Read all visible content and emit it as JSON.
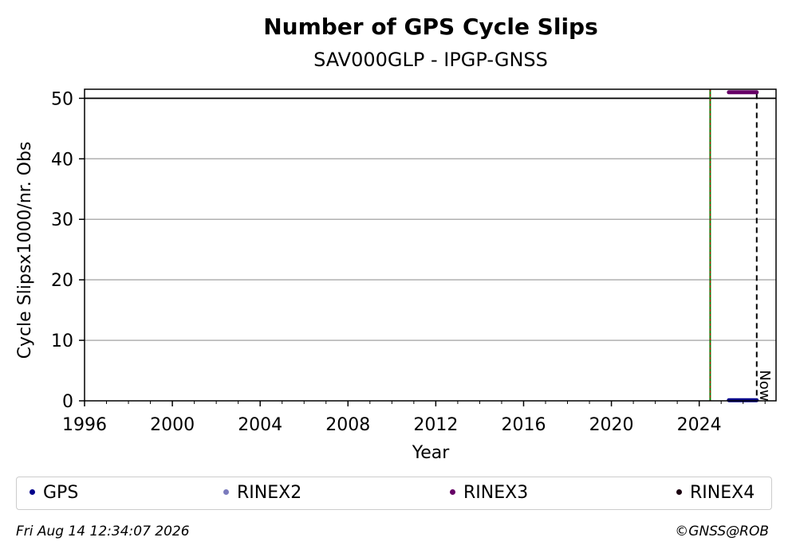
{
  "chart_data": {
    "type": "scatter",
    "title": "Number of GPS Cycle Slips",
    "subtitle": "SAV000GLP - IPGP-GNSS",
    "xlabel": "Year",
    "ylabel": "Cycle Slipsx1000/nr. Obs",
    "xlim": [
      1996.0,
      2027.5
    ],
    "ylim": [
      0,
      51.5
    ],
    "x_ticks": [
      1996,
      2000,
      2004,
      2008,
      2012,
      2016,
      2020,
      2024
    ],
    "x_tick_labels": [
      "1996",
      "2000",
      "2004",
      "2008",
      "2012",
      "2016",
      "2020",
      "2024"
    ],
    "y_ticks": [
      0,
      10,
      20,
      30,
      40,
      50
    ],
    "y_tick_labels": [
      "0",
      "10",
      "20",
      "30",
      "40",
      "50"
    ],
    "grid": "y",
    "hline": 50,
    "vline_equipment": 2024.5,
    "vline_now": 2026.62,
    "now_label": "Now",
    "series": [
      {
        "name": "GPS",
        "color": "#00008b",
        "x_start": 2025.35,
        "x_end": 2026.62,
        "y": 0.1
      },
      {
        "name": "RINEX2",
        "color": "#7b7bbd",
        "x_start": null,
        "x_end": null,
        "y": null
      },
      {
        "name": "RINEX3",
        "color": "#660066",
        "x_start": 2025.35,
        "x_end": 2026.62,
        "y": 51.0
      },
      {
        "name": "RINEX4",
        "color": "#1a0010",
        "x_start": null,
        "x_end": null,
        "y": null
      }
    ],
    "legend_placement": "bottom"
  },
  "footer": {
    "timestamp": "Fri Aug 14 12:34:07 2026",
    "credit": "©GNSS@ROB"
  }
}
